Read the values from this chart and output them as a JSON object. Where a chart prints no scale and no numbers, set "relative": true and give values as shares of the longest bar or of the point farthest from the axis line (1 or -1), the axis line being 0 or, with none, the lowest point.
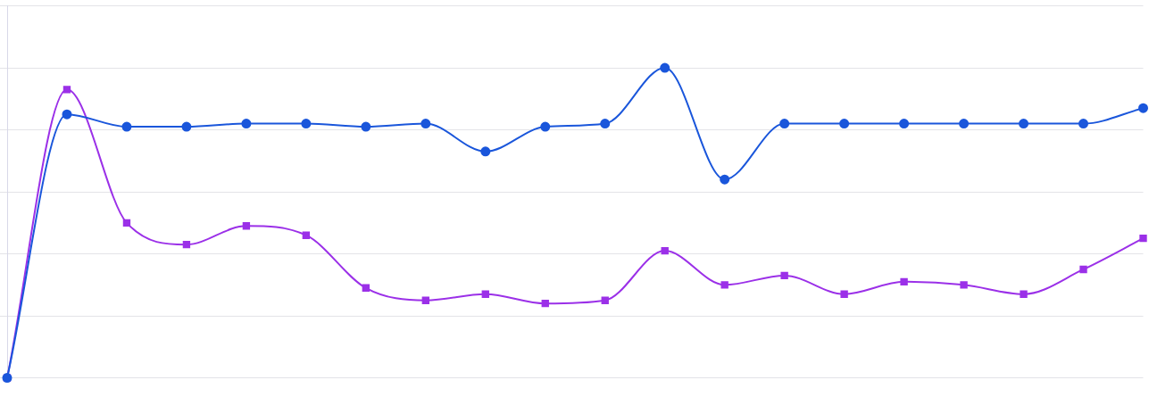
{
  "chart_data": {
    "type": "line",
    "relative": true,
    "grid": "y",
    "legend": false,
    "categories": [
      null,
      null,
      null,
      null,
      null,
      null,
      null,
      null,
      null,
      null,
      null,
      null,
      null,
      null,
      null,
      null,
      null,
      null,
      null,
      null
    ],
    "series": [
      {
        "color": "#1a56db",
        "marker": "circle",
        "values": [
          0,
          0.85,
          0.81,
          0.81,
          0.82,
          0.82,
          0.81,
          0.82,
          0.73,
          0.81,
          0.82,
          1,
          0.64,
          0.82,
          0.82,
          0.82,
          0.82,
          0.82,
          0.82,
          0.87
        ]
      },
      {
        "color": "#9b30e8",
        "marker": "square",
        "values": [
          0,
          0.93,
          0.5,
          0.43,
          0.49,
          0.46,
          0.29,
          0.25,
          0.27,
          0.24,
          0.25,
          0.41,
          0.3,
          0.33,
          0.27,
          0.31,
          0.3,
          0.27,
          0.35,
          0.45
        ]
      }
    ]
  }
}
